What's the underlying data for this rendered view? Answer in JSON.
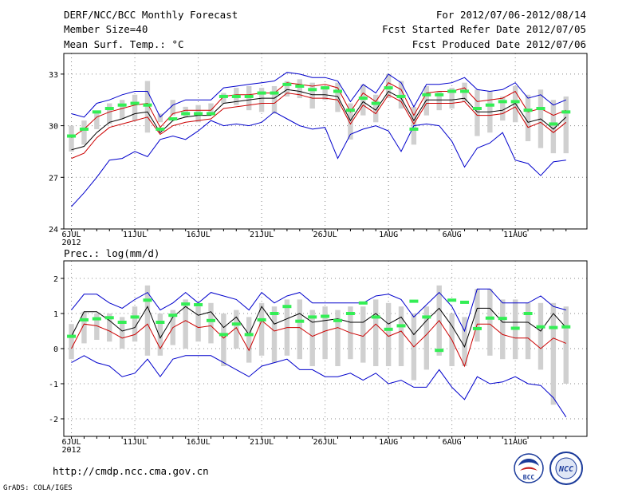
{
  "header": {
    "title": "DERF/NCC/BCC Monthly Forecast",
    "member_size": "Member Size=40",
    "for_range": "For 2012/07/06-2012/08/14",
    "fcst_started": "Fcst Started Refer Date 2012/07/05",
    "fcst_produced": "Fcst Produced Date 2012/07/06"
  },
  "footer": {
    "url": "http://cmdp.ncc.cma.gov.cn",
    "grads": "GrADS: COLA/IGES",
    "logo_bcc": "BCC",
    "logo_ncc": "NCC"
  },
  "colors": {
    "spread": "#0000cc",
    "median": "#cc0000",
    "mean": "#000000",
    "observed": "#33ee55",
    "box": "#d0d0d0",
    "grid": "#888888"
  },
  "chart_data": [
    {
      "id": "temp",
      "type": "line",
      "title": "Mean Surf. Temp.: °C",
      "xlabel": "",
      "ylabel": "°C",
      "ylim": [
        24,
        34.2
      ],
      "yticks": [
        24,
        27,
        30,
        33
      ],
      "x_tick_labels": [
        "6JUL",
        "11JUL",
        "16JUL",
        "21JUL",
        "26JUL",
        "1AUG",
        "6AUG",
        "11AUG"
      ],
      "x_tick_days": [
        1,
        6,
        11,
        16,
        21,
        26,
        31,
        36
      ],
      "x_year_label": "2012",
      "days": [
        1,
        2,
        3,
        4,
        5,
        6,
        7,
        8,
        9,
        10,
        11,
        12,
        13,
        14,
        15,
        16,
        17,
        18,
        19,
        20,
        21,
        22,
        23,
        24,
        25,
        26,
        27,
        28,
        29,
        30,
        31,
        32,
        33,
        34,
        35,
        36,
        37,
        38,
        39,
        40
      ],
      "series": [
        {
          "name": "max",
          "color": "#0000cc",
          "values": [
            30.7,
            30.5,
            31.3,
            31.5,
            31.8,
            32.0,
            32.0,
            30.5,
            31.2,
            31.5,
            31.5,
            31.5,
            32.2,
            32.3,
            32.4,
            32.5,
            32.6,
            33.1,
            33.0,
            32.8,
            32.8,
            32.6,
            31.4,
            32.4,
            31.9,
            33.0,
            32.5,
            31.1,
            32.4,
            32.4,
            32.5,
            32.8,
            32.1,
            32.0,
            32.1,
            32.5,
            31.6,
            31.8,
            31.2,
            31.5
          ]
        },
        {
          "name": "upper",
          "color": "#cc0000",
          "values": [
            29.3,
            29.8,
            30.5,
            30.8,
            31.0,
            31.2,
            31.3,
            29.9,
            30.7,
            30.9,
            30.9,
            30.9,
            31.7,
            31.8,
            31.8,
            31.9,
            31.9,
            32.5,
            32.4,
            32.3,
            32.4,
            32.2,
            30.8,
            31.9,
            31.4,
            32.5,
            32.1,
            30.6,
            31.9,
            32.0,
            32.0,
            32.2,
            31.4,
            31.5,
            31.6,
            32.0,
            30.8,
            31.0,
            30.6,
            30.9
          ]
        },
        {
          "name": "mean",
          "color": "#000000",
          "values": [
            28.6,
            28.8,
            29.6,
            30.2,
            30.4,
            30.7,
            30.8,
            29.6,
            30.3,
            30.5,
            30.6,
            30.6,
            31.3,
            31.4,
            31.5,
            31.6,
            31.6,
            32.1,
            32.0,
            31.8,
            31.8,
            31.7,
            30.3,
            31.4,
            30.9,
            32.0,
            31.6,
            30.3,
            31.5,
            31.5,
            31.5,
            31.6,
            30.8,
            30.8,
            30.9,
            31.3,
            30.2,
            30.4,
            29.8,
            30.5
          ]
        },
        {
          "name": "lower",
          "color": "#cc0000",
          "values": [
            28.1,
            28.4,
            29.3,
            29.9,
            30.1,
            30.3,
            30.5,
            29.5,
            30.0,
            30.2,
            30.3,
            30.4,
            31.0,
            31.1,
            31.2,
            31.3,
            31.3,
            31.9,
            31.8,
            31.6,
            31.6,
            31.5,
            30.1,
            31.2,
            30.7,
            31.8,
            31.4,
            30.1,
            31.3,
            31.3,
            31.3,
            31.4,
            30.6,
            30.6,
            30.7,
            31.1,
            29.9,
            30.2,
            29.6,
            30.2
          ]
        },
        {
          "name": "min",
          "color": "#0000cc",
          "values": [
            25.3,
            26.1,
            27.0,
            28.0,
            28.1,
            28.5,
            28.2,
            29.2,
            29.4,
            29.2,
            29.7,
            30.3,
            30.0,
            30.1,
            30.0,
            30.2,
            30.8,
            30.4,
            30.0,
            29.8,
            29.9,
            28.1,
            29.5,
            29.8,
            30.0,
            29.7,
            28.5,
            30.0,
            30.1,
            30.0,
            29.1,
            27.6,
            28.7,
            29.0,
            29.6,
            28.0,
            27.8,
            27.1,
            27.9,
            28.0
          ]
        }
      ],
      "box_low": [
        28.5,
        28.9,
        29.8,
        30.1,
        30.4,
        30.3,
        29.6,
        30.2,
        30.6,
        30.5,
        30.2,
        30.6,
        31.3,
        31.2,
        30.9,
        30.8,
        30.7,
        31.7,
        31.6,
        31.0,
        31.5,
        30.8,
        29.2,
        30.6,
        30.2,
        31.6,
        31.0,
        28.9,
        30.6,
        30.9,
        31.0,
        31.4,
        29.4,
        29.6,
        30.3,
        30.2,
        29.1,
        28.7,
        28.4,
        28.4
      ],
      "box_high": [
        30.0,
        30.3,
        30.8,
        31.3,
        31.5,
        31.8,
        32.6,
        30.7,
        31.5,
        31.1,
        31.2,
        31.3,
        31.9,
        32.2,
        32.3,
        32.2,
        32.3,
        32.6,
        32.7,
        32.5,
        32.3,
        32.5,
        31.3,
        32.4,
        31.8,
        33.0,
        32.6,
        31.1,
        32.3,
        32.0,
        32.2,
        32.5,
        32.1,
        32.0,
        31.7,
        32.3,
        31.8,
        32.1,
        31.5,
        31.7
      ],
      "observed": [
        29.4,
        29.8,
        30.8,
        31.0,
        31.2,
        31.3,
        31.2,
        29.8,
        30.4,
        30.7,
        30.7,
        30.7,
        31.7,
        31.7,
        31.7,
        31.9,
        31.9,
        32.4,
        32.3,
        32.1,
        32.2,
        32.0,
        30.9,
        31.6,
        31.3,
        32.2,
        31.7,
        29.8,
        31.8,
        31.8,
        32.0,
        32.0,
        31.0,
        31.2,
        31.4,
        31.4,
        30.9,
        31.0,
        30.1,
        30.8
      ]
    },
    {
      "id": "prec",
      "type": "line",
      "title": "Prec.: log(mm/d)",
      "xlabel": "",
      "ylabel": "log(mm/d)",
      "ylim": [
        -2.5,
        2.5
      ],
      "yticks": [
        -2,
        -1,
        0,
        1,
        2
      ],
      "x_tick_labels": [
        "6JUL",
        "11JUL",
        "16JUL",
        "21JUL",
        "26JUL",
        "1AUG",
        "6AUG",
        "11AUG"
      ],
      "x_tick_days": [
        1,
        6,
        11,
        16,
        21,
        26,
        31,
        36
      ],
      "x_year_label": "2012",
      "days": [
        1,
        2,
        3,
        4,
        5,
        6,
        7,
        8,
        9,
        10,
        11,
        12,
        13,
        14,
        15,
        16,
        17,
        18,
        19,
        20,
        21,
        22,
        23,
        24,
        25,
        26,
        27,
        28,
        29,
        30,
        31,
        32,
        33,
        34,
        35,
        36,
        37,
        38,
        39,
        40
      ],
      "series": [
        {
          "name": "max",
          "color": "#0000cc",
          "values": [
            1.1,
            1.55,
            1.55,
            1.3,
            1.15,
            1.4,
            1.6,
            1.1,
            1.3,
            1.6,
            1.3,
            1.6,
            1.5,
            1.4,
            1.1,
            1.6,
            1.3,
            1.5,
            1.6,
            1.3,
            1.3,
            1.3,
            1.3,
            1.3,
            1.5,
            1.55,
            1.4,
            0.9,
            1.25,
            1.6,
            1.2,
            0.5,
            1.7,
            1.7,
            1.3,
            1.3,
            1.3,
            1.5,
            1.2,
            1.1
          ]
        },
        {
          "name": "upper",
          "color": "#000000",
          "values": [
            0.35,
            1.05,
            1.05,
            0.8,
            0.5,
            0.6,
            1.2,
            0.3,
            0.9,
            1.2,
            0.95,
            1.05,
            0.6,
            0.9,
            0.4,
            1.2,
            0.7,
            0.85,
            1.0,
            0.75,
            0.8,
            0.85,
            0.75,
            0.75,
            1.0,
            0.7,
            0.9,
            0.4,
            0.8,
            1.15,
            0.65,
            0.05,
            1.15,
            1.15,
            0.75,
            0.75,
            0.75,
            0.5,
            1.0,
            0.6
          ]
        },
        {
          "name": "median",
          "color": "#cc0000",
          "values": [
            0.0,
            0.7,
            0.65,
            0.5,
            0.3,
            0.4,
            0.7,
            0.0,
            0.6,
            0.8,
            0.6,
            0.65,
            0.3,
            0.6,
            -0.05,
            0.8,
            0.5,
            0.6,
            0.6,
            0.35,
            0.5,
            0.6,
            0.45,
            0.35,
            0.7,
            0.35,
            0.5,
            0.05,
            0.4,
            0.8,
            0.25,
            -0.5,
            0.7,
            0.7,
            0.4,
            0.3,
            0.3,
            0.0,
            0.3,
            0.15
          ]
        },
        {
          "name": "min",
          "color": "#0000cc",
          "values": [
            -0.4,
            -0.2,
            -0.4,
            -0.5,
            -0.8,
            -0.7,
            -0.3,
            -0.8,
            -0.3,
            -0.2,
            -0.2,
            -0.2,
            -0.4,
            -0.6,
            -0.8,
            -0.5,
            -0.4,
            -0.3,
            -0.6,
            -0.6,
            -0.8,
            -0.8,
            -0.7,
            -0.9,
            -0.7,
            -1.0,
            -0.9,
            -1.1,
            -1.1,
            -0.6,
            -1.1,
            -1.45,
            -0.8,
            -1.0,
            -0.95,
            -0.8,
            -1.0,
            -1.05,
            -1.4,
            -1.95
          ]
        }
      ],
      "box_low": [
        -0.3,
        0.15,
        0.25,
        0.2,
        0.0,
        0.2,
        -0.2,
        -0.2,
        0.1,
        0.0,
        0.2,
        0.15,
        -0.5,
        0.0,
        -0.4,
        -0.2,
        -0.4,
        -0.2,
        -0.3,
        -0.5,
        -0.3,
        -0.5,
        -0.3,
        -0.4,
        -0.5,
        -0.5,
        -0.5,
        -0.9,
        -0.6,
        -0.2,
        -0.5,
        -0.5,
        0.2,
        -0.2,
        -0.3,
        -0.3,
        -0.3,
        -0.6,
        -1.6,
        -1.0
      ],
      "box_high": [
        0.7,
        1.05,
        1.0,
        1.0,
        0.9,
        1.2,
        1.8,
        1.0,
        1.1,
        1.4,
        1.2,
        1.3,
        1.0,
        1.1,
        0.9,
        1.3,
        1.2,
        1.4,
        1.4,
        1.1,
        1.2,
        1.1,
        1.2,
        1.2,
        1.4,
        1.3,
        1.2,
        1.0,
        1.2,
        1.8,
        1.0,
        0.9,
        1.7,
        1.7,
        1.4,
        1.4,
        1.3,
        1.3,
        1.3,
        1.2
      ],
      "observed": [
        0.35,
        0.82,
        0.85,
        0.88,
        0.75,
        0.9,
        1.38,
        0.75,
        0.95,
        1.27,
        1.25,
        0.8,
        0.4,
        0.7,
        0.4,
        0.82,
        1.0,
        1.2,
        0.78,
        0.9,
        0.92,
        0.8,
        1.0,
        1.3,
        0.9,
        0.55,
        0.65,
        1.35,
        0.9,
        -0.05,
        1.38,
        1.32,
        0.57,
        0.87,
        0.86,
        0.58,
        1.0,
        0.62,
        0.6,
        0.62
      ]
    }
  ]
}
